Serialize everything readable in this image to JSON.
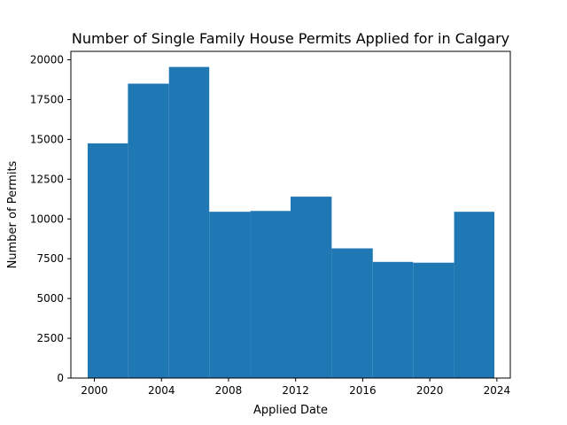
{
  "chart_data": {
    "type": "bar",
    "title": "Number of Single Family House Permits Applied for in Calgary",
    "xlabel": "Applied Date",
    "ylabel": "Number of Permits",
    "bin_edges": [
      1999.6,
      2002.0,
      2004.45,
      2006.85,
      2009.3,
      2011.7,
      2014.15,
      2016.6,
      2019.0,
      2021.45,
      2023.85
    ],
    "values": [
      14750,
      18500,
      19550,
      10450,
      10500,
      11400,
      8150,
      7300,
      7250,
      10450
    ],
    "xlim": [
      1998.6,
      2024.8
    ],
    "ylim": [
      0,
      20530
    ],
    "xticks": [
      2000,
      2004,
      2008,
      2012,
      2016,
      2020,
      2024
    ],
    "yticks": [
      0,
      2500,
      5000,
      7500,
      10000,
      12500,
      15000,
      17500,
      20000
    ],
    "grid": false,
    "legend": "none",
    "bar_color": "#1f77b4"
  }
}
